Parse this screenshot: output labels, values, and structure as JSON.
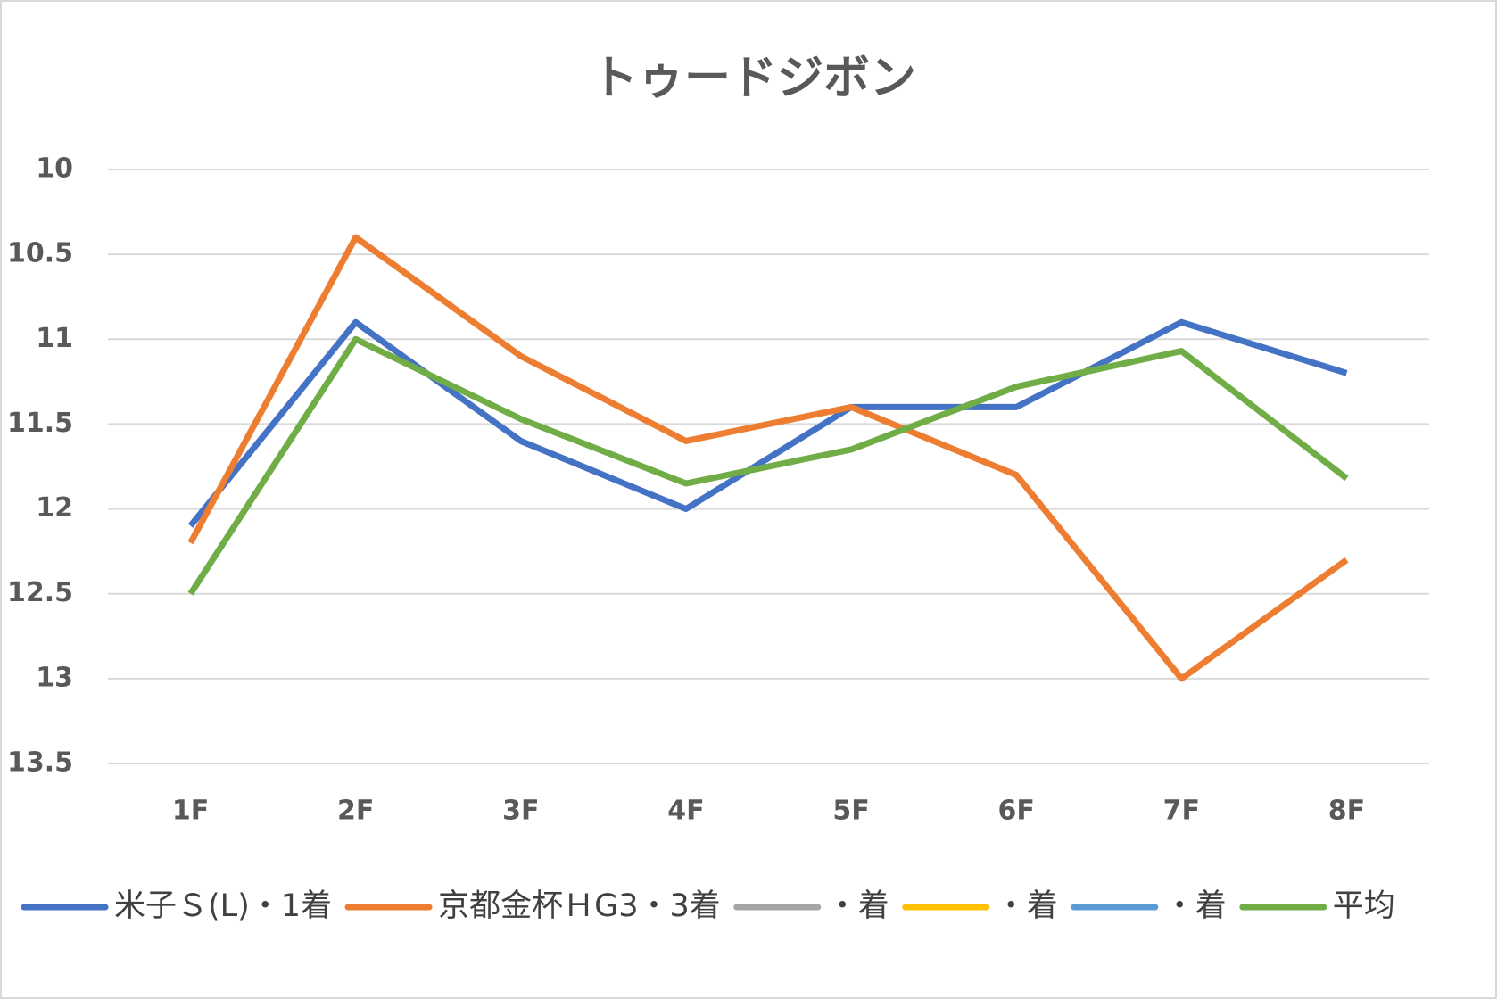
{
  "chart_data": {
    "type": "line",
    "title": "トゥードジボン",
    "categories": [
      "1F",
      "2F",
      "3F",
      "4F",
      "5F",
      "6F",
      "7F",
      "8F"
    ],
    "series": [
      {
        "name": "米子Ｓ(L)・1着",
        "color": "#4472c4",
        "values": [
          12.1,
          10.9,
          11.6,
          12.0,
          11.4,
          11.4,
          10.9,
          11.2
        ]
      },
      {
        "name": "京都金杯ＨG3・3着",
        "color": "#ed7d31",
        "values": [
          12.2,
          10.4,
          11.1,
          11.6,
          11.4,
          11.8,
          13.0,
          12.3
        ]
      },
      {
        "name": "・着",
        "color": "#a5a5a5",
        "values": [
          null,
          null,
          null,
          null,
          null,
          null,
          null,
          null
        ]
      },
      {
        "name": "・着",
        "color": "#ffc000",
        "values": [
          null,
          null,
          null,
          null,
          null,
          null,
          null,
          null
        ]
      },
      {
        "name": "・着",
        "color": "#5b9bd5",
        "values": [
          null,
          null,
          null,
          null,
          null,
          null,
          null,
          null
        ]
      },
      {
        "name": "平均",
        "color": "#70ad47",
        "values": [
          12.5,
          11.0,
          11.47,
          11.85,
          11.65,
          11.28,
          11.07,
          11.82
        ]
      }
    ],
    "ylim": [
      10,
      13.5
    ],
    "yreverse": true,
    "yticks": [
      10,
      10.5,
      11,
      11.5,
      12,
      12.5,
      13,
      13.5
    ],
    "grid": true,
    "legend": "bottom"
  }
}
